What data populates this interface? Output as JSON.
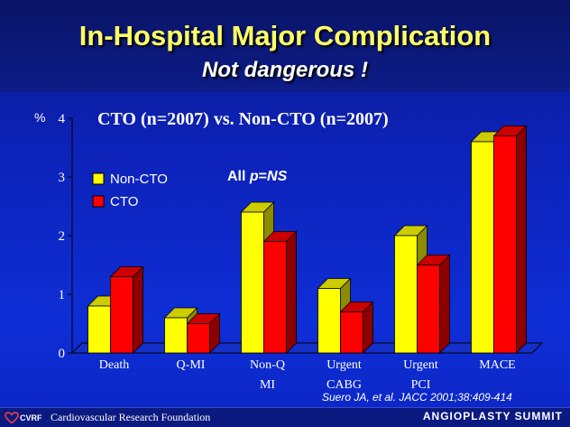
{
  "slide": {
    "title": "In-Hospital Major Complication",
    "subtitle": "Not dangerous !",
    "citation": "Suero JA, et al. JACC 2001;38:409-414",
    "footer_left": "Cardiovascular Research Foundation",
    "footer_right": "ANGIOPLASTY SUMMIT",
    "logo_text": "CVRF"
  },
  "chart_data": {
    "type": "bar",
    "title": "CTO (n=2007) vs. Non-CTO (n=2007)",
    "annotation": "All p=NS",
    "ylabel": "%",
    "ylim": [
      0,
      4
    ],
    "yticks": [
      0,
      1,
      2,
      3,
      4
    ],
    "categories": [
      "Death",
      "Q-MI",
      "Non-Q MI",
      "Urgent CABG",
      "Urgent PCI",
      "MACE"
    ],
    "category_lines": [
      [
        "Death"
      ],
      [
        "Q-MI"
      ],
      [
        "Non-Q",
        "MI"
      ],
      [
        "Urgent",
        "CABG"
      ],
      [
        "Urgent",
        "PCI"
      ],
      [
        "MACE"
      ]
    ],
    "series": [
      {
        "name": "Non-CTO",
        "color": "#ffff00",
        "values": [
          0.8,
          0.6,
          2.4,
          1.1,
          2.0,
          3.6
        ]
      },
      {
        "name": "CTO",
        "color": "#ff0000",
        "values": [
          1.3,
          0.5,
          1.9,
          0.7,
          1.5,
          3.7
        ]
      }
    ],
    "legend_position": "top-left",
    "grid": false
  }
}
